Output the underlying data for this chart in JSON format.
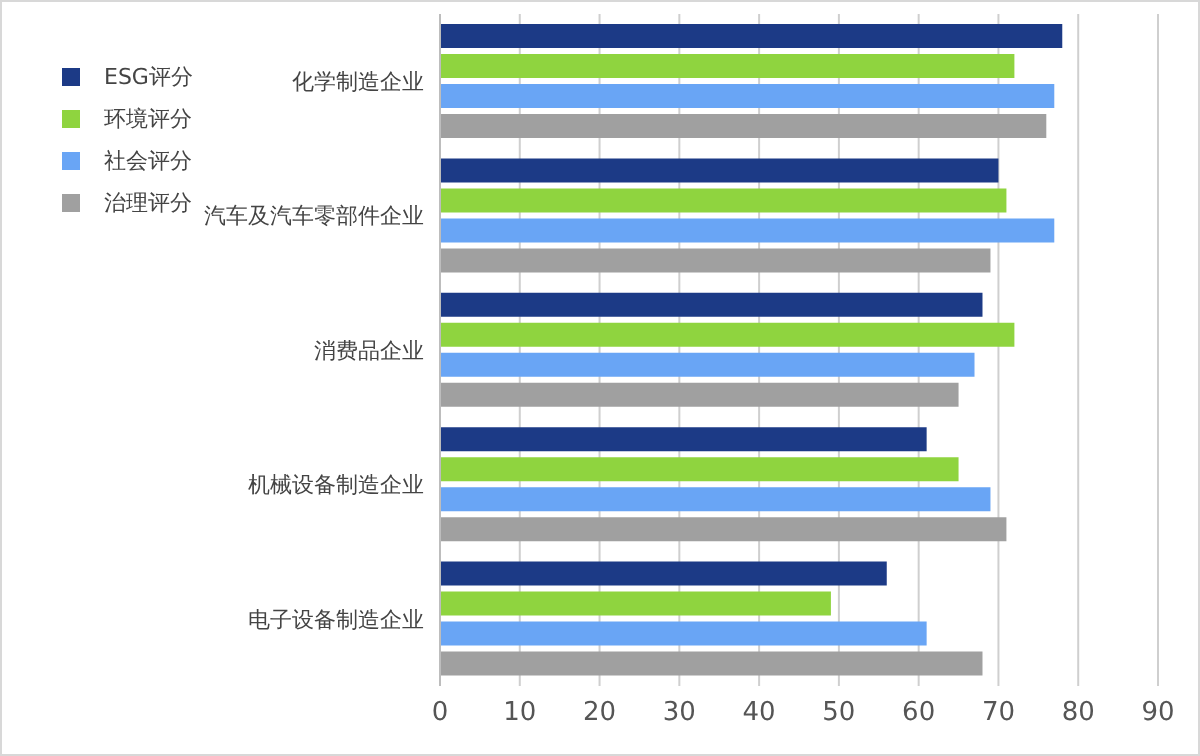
{
  "chart_data": {
    "type": "bar",
    "orientation": "horizontal",
    "categories": [
      "化学制造企业",
      "汽车及汽车零部件企业",
      "消费品企业",
      "机械设备制造企业",
      "电子设备制造企业"
    ],
    "series": [
      {
        "name": "ESG评分",
        "color": "#1c3a86",
        "values": [
          78,
          70,
          68,
          61,
          56
        ]
      },
      {
        "name": "环境评分",
        "color": "#8fd43f",
        "values": [
          72,
          71,
          72,
          65,
          49
        ]
      },
      {
        "name": "社会评分",
        "color": "#69a5f5",
        "values": [
          77,
          77,
          67,
          69,
          61
        ]
      },
      {
        "name": "治理评分",
        "color": "#a0a0a0",
        "values": [
          76,
          69,
          65,
          71,
          68
        ]
      }
    ],
    "xlim": [
      0,
      90
    ],
    "xticks": [
      0,
      10,
      20,
      30,
      40,
      50,
      60,
      70,
      80,
      90
    ],
    "grid": "x",
    "legend": "top left"
  }
}
